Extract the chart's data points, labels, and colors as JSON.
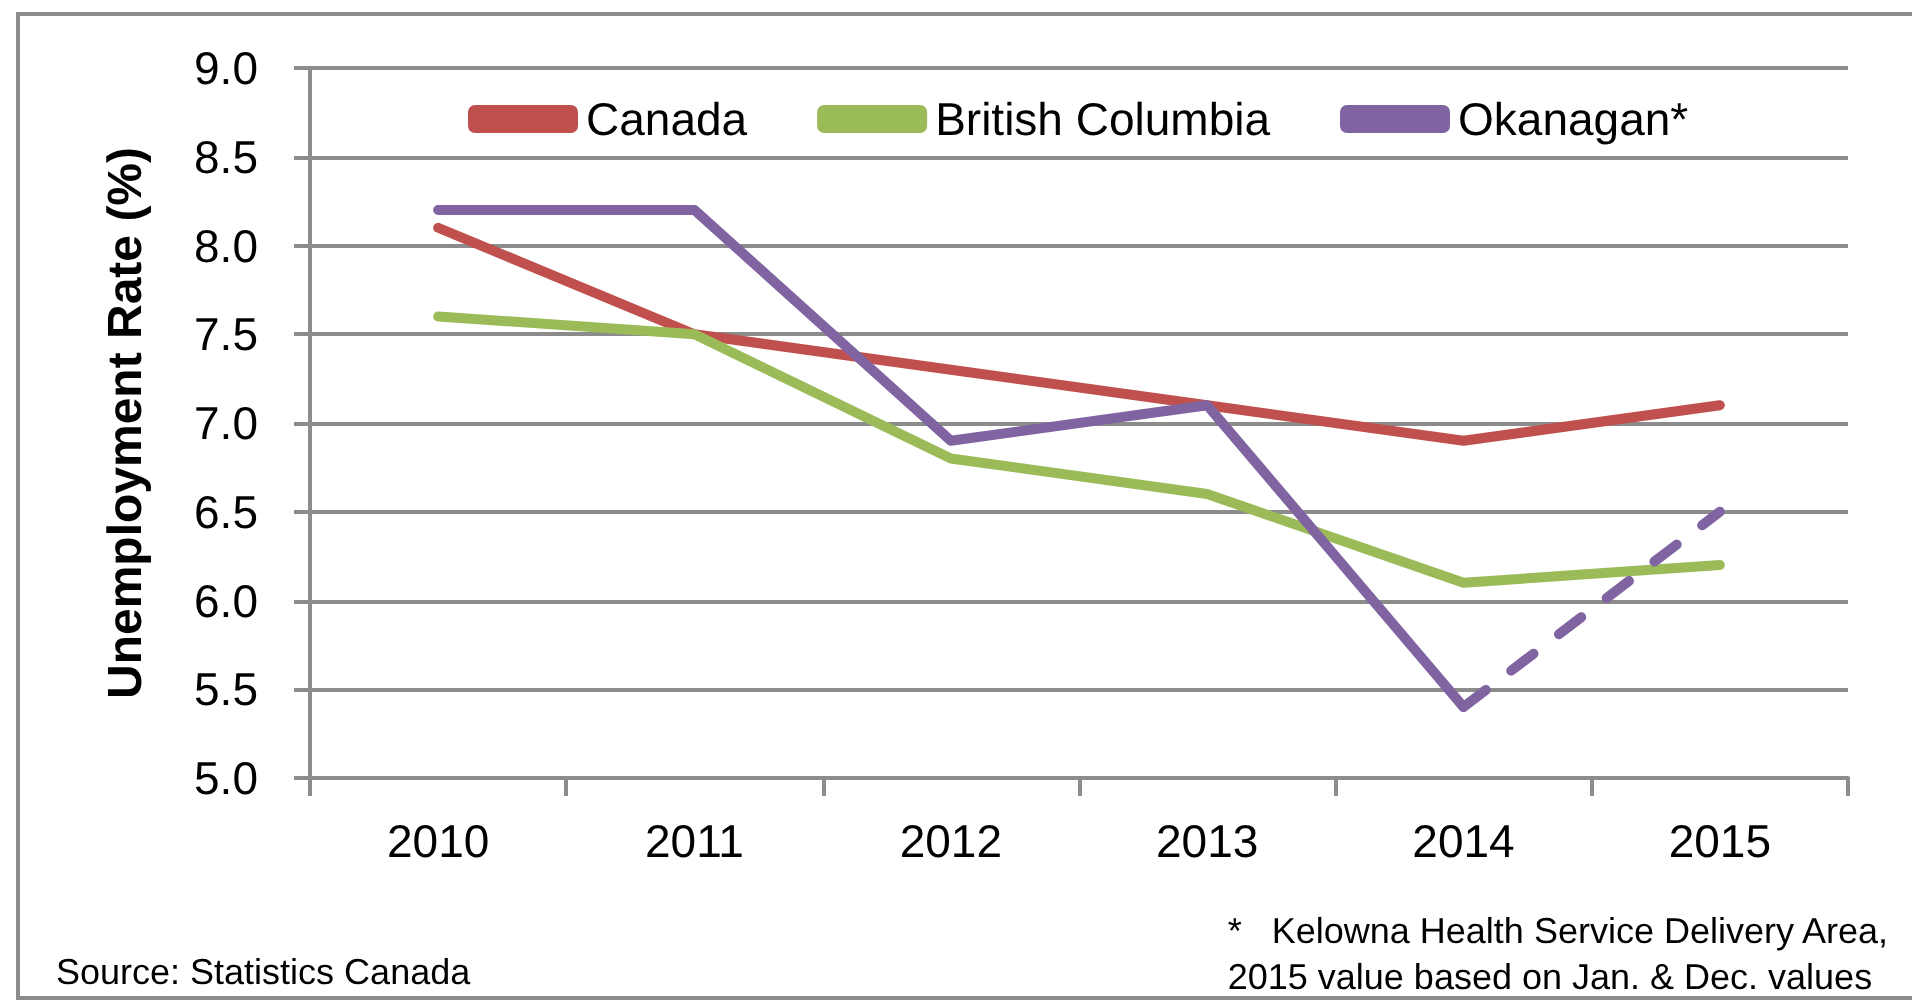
{
  "chart_data": {
    "type": "line",
    "ylabel": "Unemployment Rate (%)",
    "categories": [
      "2010",
      "2011",
      "2012",
      "2013",
      "2014",
      "2015"
    ],
    "series": [
      {
        "name": "Canada",
        "color": "#c0504d",
        "values": [
          8.1,
          7.5,
          7.3,
          7.1,
          6.9,
          7.1
        ]
      },
      {
        "name": "British Columbia",
        "color": "#9bbb59",
        "values": [
          7.6,
          7.5,
          6.8,
          6.6,
          6.1,
          6.2
        ]
      },
      {
        "name": "Okanagan*",
        "color": "#8064a2",
        "values": [
          8.2,
          8.2,
          6.9,
          7.1,
          5.4,
          null
        ]
      },
      {
        "color": "#8064a2",
        "line_style": "dashed",
        "values": [
          null,
          null,
          null,
          null,
          5.4,
          6.5
        ]
      }
    ],
    "ylim": [
      5,
      9
    ],
    "yticks": [
      {
        "value": 5,
        "label": "5.0"
      },
      {
        "value": 5.5,
        "label": "5.5"
      },
      {
        "value": 6,
        "label": "6.0"
      },
      {
        "value": 6.5,
        "label": "6.5"
      },
      {
        "value": 7,
        "label": "7.0"
      },
      {
        "value": 7.5,
        "label": "7.5"
      },
      {
        "value": 8,
        "label": "8.0"
      },
      {
        "value": 8.5,
        "label": "8.5"
      },
      {
        "value": 9,
        "label": "9.0"
      }
    ],
    "grid": "y",
    "legend": "top",
    "marker": "none",
    "line_style": "solid",
    "annotations": [
      "Source: Statistics Canada",
      "*   Kelowna Health Service Delivery Area,\n2015 value based on Jan. & Dec. values"
    ]
  }
}
